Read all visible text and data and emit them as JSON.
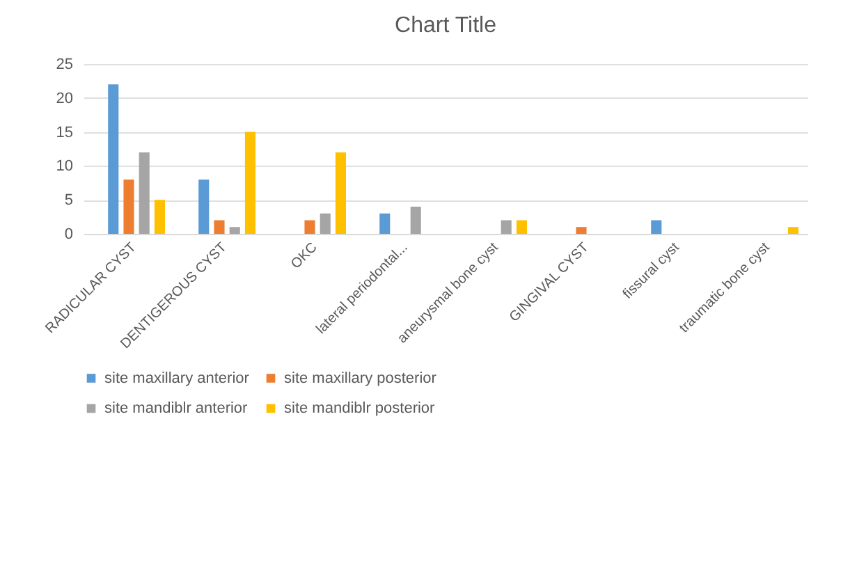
{
  "chart_data": {
    "type": "bar",
    "title": "Chart Title",
    "categories": [
      "RADICULAR CYST",
      "DENTIGEROUS CYST",
      "OKC",
      "lateral periodontal...",
      "aneurysmal bone cyst",
      "GINGIVAL CYST",
      "fissural cyst",
      "traumatic bone cyst"
    ],
    "series": [
      {
        "name": "site maxillary anterior",
        "color": "#5b9bd5",
        "values": [
          22,
          8,
          0,
          3,
          0,
          0,
          2,
          0
        ]
      },
      {
        "name": "site maxillary posterior",
        "color": "#ed7d31",
        "values": [
          8,
          2,
          2,
          0,
          0,
          1,
          0,
          0
        ]
      },
      {
        "name": "site mandiblr anterior",
        "color": "#a5a5a5",
        "values": [
          12,
          1,
          3,
          4,
          2,
          0,
          0,
          0
        ]
      },
      {
        "name": "site mandiblr posterior",
        "color": "#ffc000",
        "values": [
          5,
          15,
          12,
          0,
          2,
          0,
          0,
          1
        ]
      }
    ],
    "ylim": [
      0,
      25
    ],
    "yticks": [
      0,
      5,
      10,
      15,
      20,
      25
    ],
    "grid": "y",
    "legend": "bottom"
  }
}
